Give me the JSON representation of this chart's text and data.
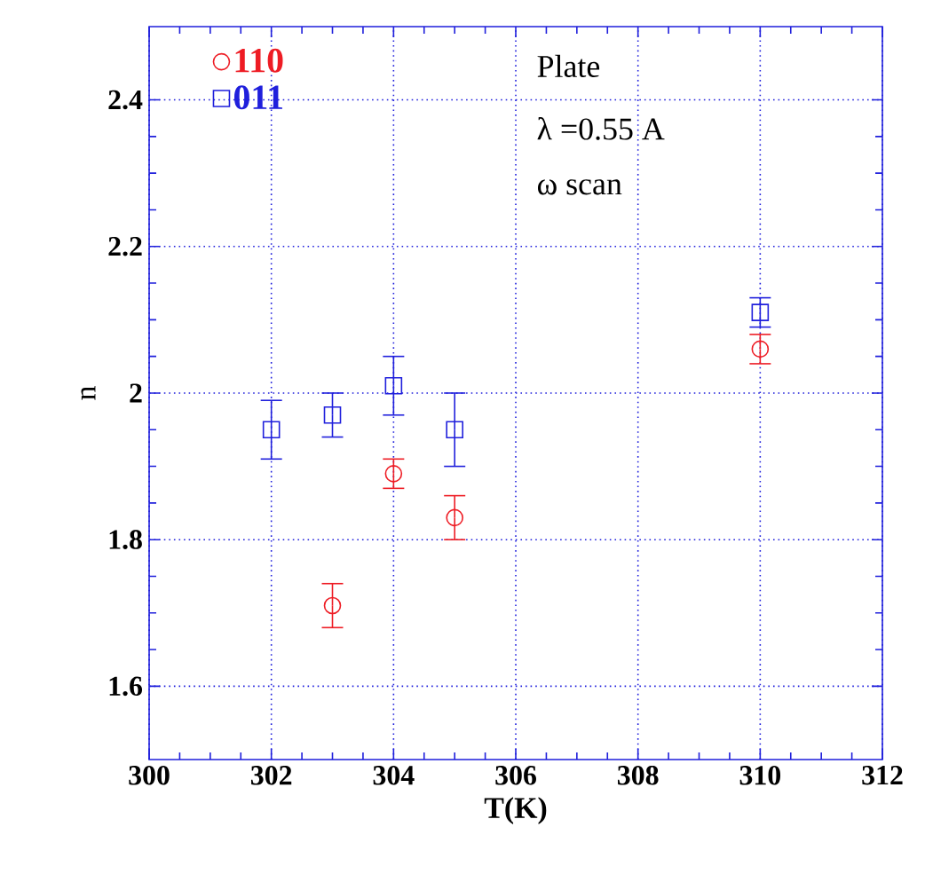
{
  "chart_data": {
    "type": "scatter",
    "xlabel": "T(K)",
    "ylabel": "n",
    "xlim": [
      300,
      312
    ],
    "xticks": [
      300,
      302,
      304,
      306,
      308,
      310,
      312
    ],
    "ylim": [
      1.5,
      2.5
    ],
    "yticks": [
      1.6,
      1.8,
      2,
      2.2,
      2.4
    ],
    "grid": true,
    "legend": "top left",
    "line_style": "dotted",
    "series": [
      {
        "name": "110",
        "color": "#ee1c24",
        "marker": "circle",
        "x": [
          303,
          304,
          305,
          310
        ],
        "values": [
          1.71,
          1.89,
          1.83,
          2.06
        ],
        "errors": [
          0.03,
          0.02,
          0.03,
          0.02
        ]
      },
      {
        "name": "011",
        "color": "#1f1fdc",
        "marker": "square",
        "x": [
          302,
          303,
          304,
          305,
          310
        ],
        "values": [
          1.95,
          1.97,
          2.01,
          1.95,
          2.11
        ],
        "errors": [
          0.04,
          0.03,
          0.04,
          0.05,
          0.02
        ]
      }
    ],
    "annotations": [
      "Plate",
      "λ =0.55 A",
      "ω scan"
    ]
  }
}
